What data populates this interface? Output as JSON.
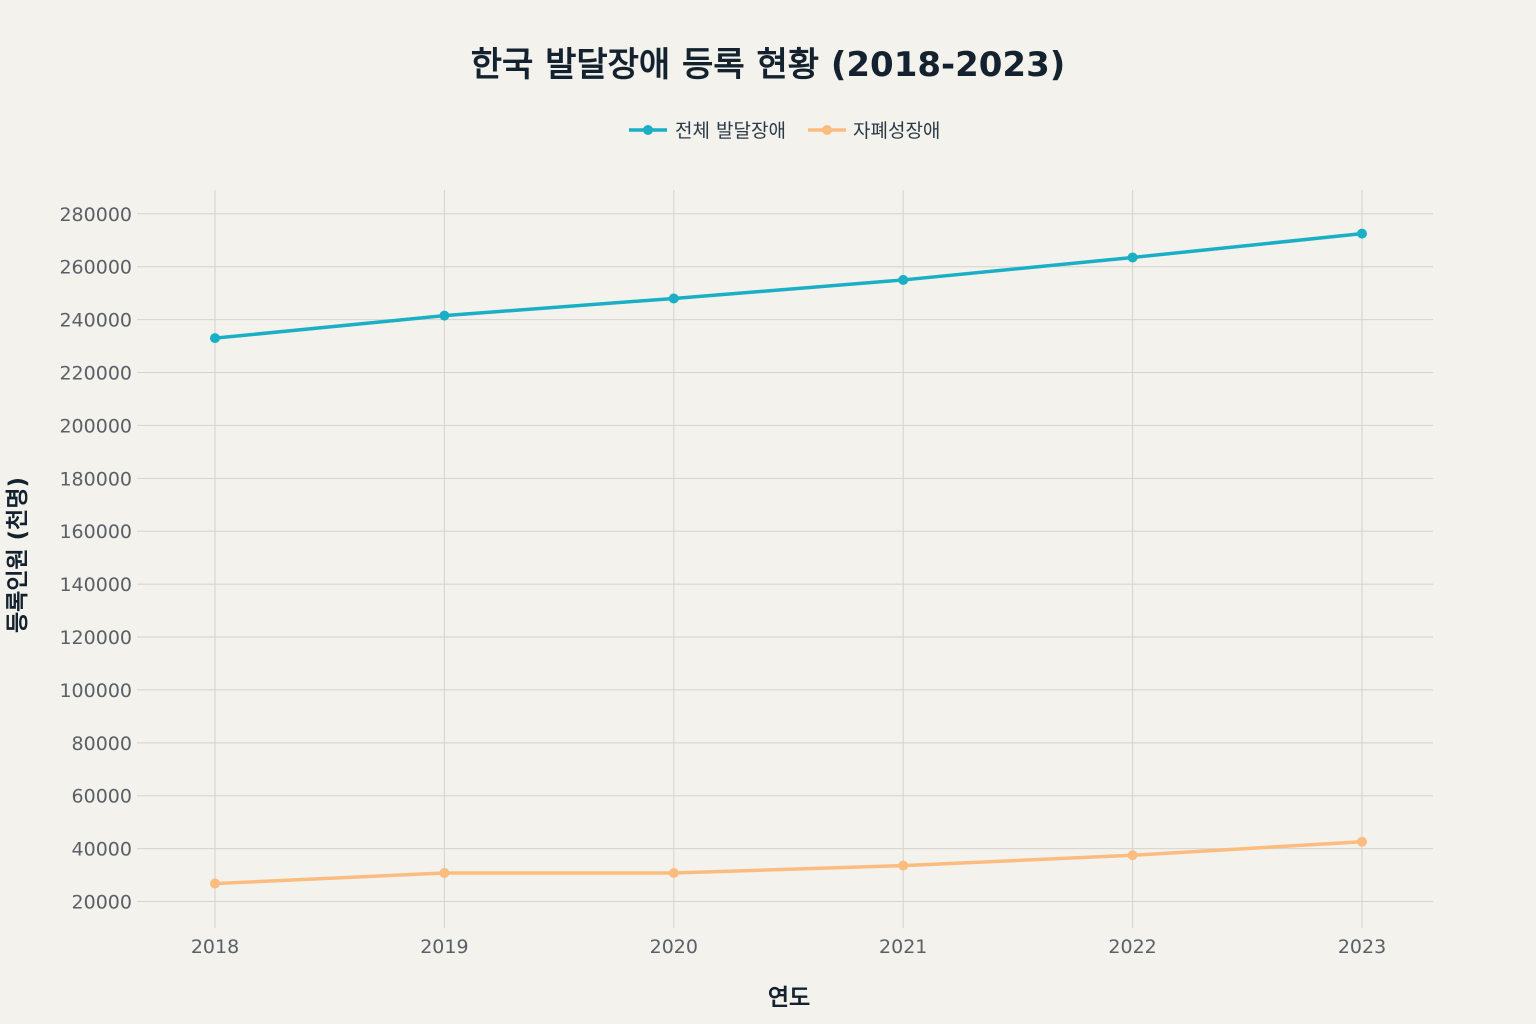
{
  "chart_data": {
    "type": "line",
    "title": "한국 발달장애 등록 현황 (2018-2023)",
    "xlabel": "연도",
    "ylabel": "등록인원 (천명)",
    "x": [
      "2018",
      "2019",
      "2020",
      "2021",
      "2022",
      "2023"
    ],
    "yticks": [
      20000,
      40000,
      60000,
      80000,
      100000,
      120000,
      140000,
      160000,
      180000,
      200000,
      220000,
      240000,
      260000,
      280000
    ],
    "ylim": [
      10000,
      289000
    ],
    "grid": true,
    "legend_position": "top-center",
    "series": [
      {
        "name": "전체 발달장애",
        "color": "#1aafc4",
        "values": [
          233000,
          241500,
          248000,
          255000,
          263500,
          272500
        ]
      },
      {
        "name": "자폐성장애",
        "color": "#fbbc7f",
        "values": [
          26800,
          30800,
          30800,
          33600,
          37500,
          42600
        ]
      }
    ]
  }
}
